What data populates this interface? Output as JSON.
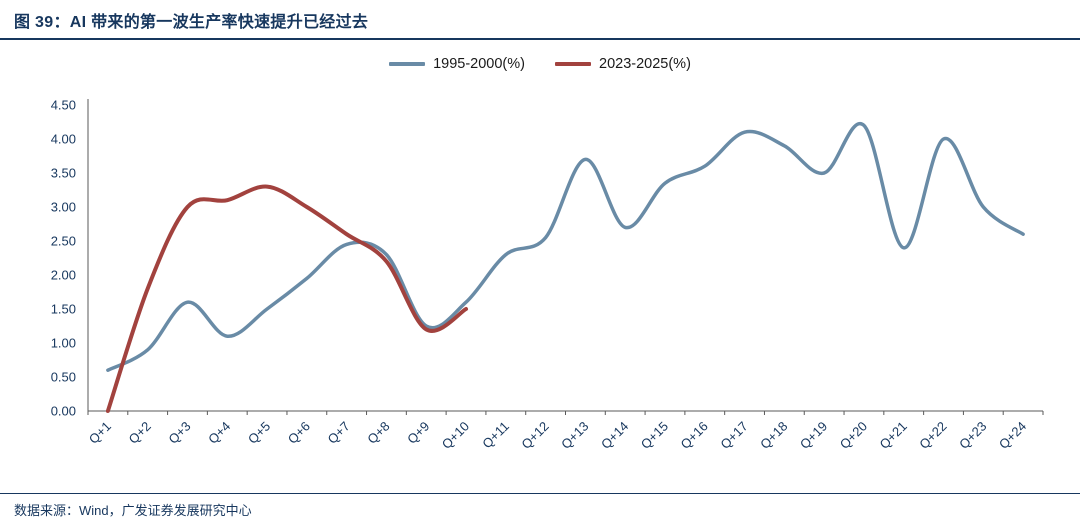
{
  "page": {
    "title": "图 39：AI 带来的第一波生产率快速提升已经过去",
    "source": "数据来源：Wind，广发证券发展研究中心"
  },
  "chart_data": {
    "type": "line",
    "title": "图 39：AI 带来的第一波生产率快速提升已经过去",
    "categories": [
      "Q+1",
      "Q+2",
      "Q+3",
      "Q+4",
      "Q+5",
      "Q+6",
      "Q+7",
      "Q+8",
      "Q+9",
      "Q+10",
      "Q+11",
      "Q+12",
      "Q+13",
      "Q+14",
      "Q+15",
      "Q+16",
      "Q+17",
      "Q+18",
      "Q+19",
      "Q+20",
      "Q+21",
      "Q+22",
      "Q+23",
      "Q+24"
    ],
    "series": [
      {
        "name": "1995-2000(%)",
        "color": "#698ba6",
        "width": 3.5,
        "values": [
          0.6,
          0.9,
          1.6,
          1.1,
          1.5,
          1.95,
          2.45,
          2.3,
          1.25,
          1.6,
          2.3,
          2.55,
          3.7,
          2.7,
          3.35,
          3.6,
          4.1,
          3.9,
          3.5,
          4.2,
          2.4,
          4.0,
          3.0,
          2.6
        ]
      },
      {
        "name": "2023-2025(%)",
        "color": "#a2423e",
        "width": 4,
        "values": [
          0.0,
          1.8,
          3.0,
          3.1,
          3.3,
          3.0,
          2.6,
          2.2,
          1.2,
          1.5,
          null,
          null,
          null,
          null,
          null,
          null,
          null,
          null,
          null,
          null,
          null,
          null,
          null,
          null
        ]
      }
    ],
    "ylim": [
      0,
      4.5
    ],
    "y_ticks": [
      "0.00",
      "0.50",
      "1.00",
      "1.50",
      "2.00",
      "2.50",
      "3.00",
      "3.50",
      "4.00",
      "4.50"
    ],
    "grid": false,
    "legend_position": "top",
    "smooth": true,
    "xlabel": "",
    "ylabel": ""
  }
}
